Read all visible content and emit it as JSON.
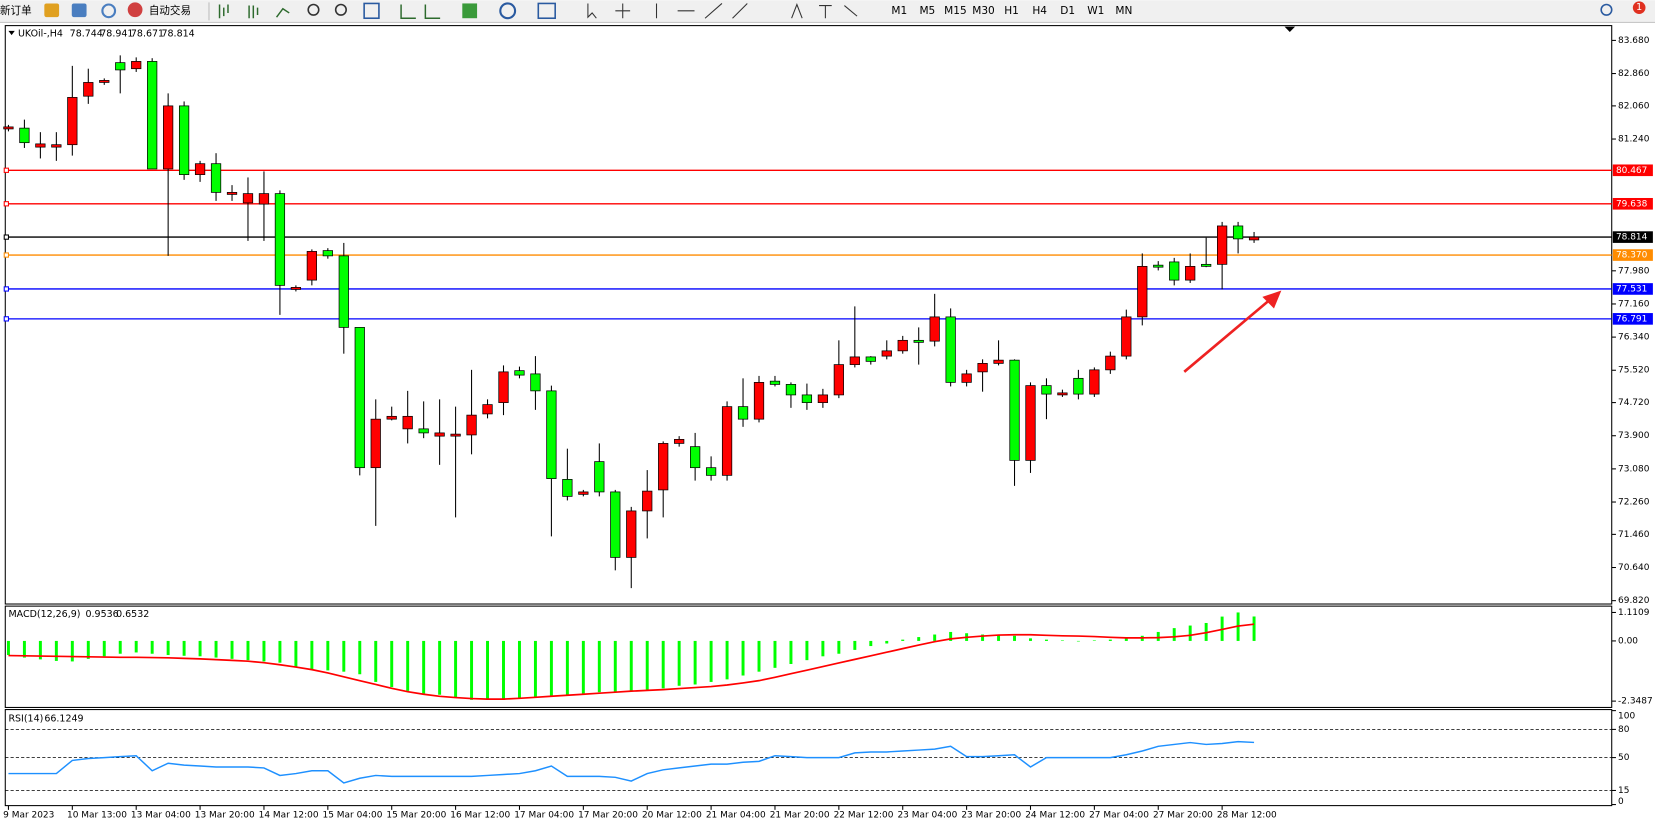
{
  "toolbar": {
    "new_order": "新订单",
    "auto_trading": "自动交易",
    "timeframes": [
      "M1",
      "M5",
      "M15",
      "M30",
      "H1",
      "H4",
      "D1",
      "W1",
      "MN"
    ],
    "notifications": 1
  },
  "chart": {
    "symbol": "UKOil-,H4",
    "up_color": "#ff0000",
    "down_color": "#00ff00",
    "price_line_color": "#000000",
    "ylim": [
      69.737,
      84.046
    ],
    "yticks": [
      {
        "value": 83.68,
        "label": "83.680"
      },
      {
        "value": 82.86,
        "label": "82.860"
      },
      {
        "value": 82.06,
        "label": "82.060"
      },
      {
        "value": 81.24,
        "label": "81.240"
      },
      {
        "value": 77.98,
        "label": "77.980"
      },
      {
        "value": 77.16,
        "label": "77.160"
      },
      {
        "value": 76.34,
        "label": "76.340"
      },
      {
        "value": 75.52,
        "label": "75.520"
      },
      {
        "value": 74.72,
        "label": "74.720"
      },
      {
        "value": 73.9,
        "label": "73.900"
      },
      {
        "value": 73.08,
        "label": "73.080"
      },
      {
        "value": 72.26,
        "label": "72.260"
      },
      {
        "value": 71.46,
        "label": "71.460"
      },
      {
        "value": 70.64,
        "label": "70.640"
      },
      {
        "value": 69.82,
        "label": "69.820"
      }
    ],
    "levels": [
      {
        "value": 80.467,
        "color": "#ff0000"
      },
      {
        "value": {
          "value": 79.638,
          "label": "79.638"
        },
        "color": "#ff0000"
      },
      {
        "value": {
          "value": 78.37,
          "label": "78.370"
        },
        "color": "#ff8c00"
      },
      {
        "value": 77.531,
        "color": "#0000ff"
      },
      {
        "value": 76.791,
        "color": "#0000ff"
      }
    ],
    "categories": [
      "9 Mar 2023",
      null,
      null,
      null,
      "10 Mar 13:00",
      null,
      null,
      null,
      "13 Mar 04:00",
      null,
      null,
      null,
      "13 Mar 20:00",
      null,
      null,
      null,
      "14 Mar 12:00",
      null,
      null,
      null,
      "15 Mar 04:00",
      null,
      null,
      null,
      "15 Mar 20:00",
      null,
      null,
      null,
      "16 Mar 12:00",
      null,
      null,
      null,
      "17 Mar 04:00",
      null,
      null,
      null,
      "17 Mar 20:00",
      null,
      null,
      null,
      "20 Mar 12:00",
      null,
      null,
      null,
      "21 Mar 04:00",
      null,
      null,
      null,
      "21 Mar 20:00",
      null,
      null,
      null,
      "22 Mar 12:00",
      null,
      null,
      null,
      "23 Mar 04:00",
      null,
      null,
      null,
      "23 Mar 20:00",
      null,
      null,
      null,
      "24 Mar 12:00",
      null,
      null,
      null,
      "27 Mar 04:00",
      null,
      null,
      null,
      "27 Mar 20:00",
      null,
      null,
      null,
      "28 Mar 12:00",
      null,
      null
    ],
    "candles": {
      "open": [
        81.49,
        81.51,
        81.04,
        81.04,
        81.1,
        82.3,
        82.64,
        83.13,
        82.98,
        83.16,
        80.5,
        82.06,
        80.36,
        80.63,
        79.87,
        79.66,
        79.63,
        79.89,
        77.52,
        77.75,
        78.48,
        78.35,
        76.58,
        73.11,
        74.31,
        74.07,
        74.07,
        73.89,
        73.89,
        73.92,
        74.44,
        74.72,
        75.51,
        75.43,
        75.01,
        72.82,
        72.45,
        73.26,
        72.51,
        70.89,
        72.04,
        72.56,
        73.71,
        73.63,
        73.11,
        72.92,
        74.62,
        74.31,
        75.25,
        75.17,
        74.91,
        74.72,
        74.91,
        75.66,
        75.85,
        75.87,
        76.0,
        76.26,
        76.24,
        76.84,
        75.22,
        75.48,
        75.69,
        75.77,
        73.29,
        75.14,
        74.91,
        75.32,
        74.93,
        75.53,
        75.87,
        76.84,
        78.12,
        78.2,
        77.75,
        78.14,
        78.14,
        79.09,
        78.744
      ],
      "high": [
        81.59,
        81.72,
        81.41,
        81.41,
        83.05,
        82.98,
        82.74,
        83.31,
        83.26,
        83.24,
        82.37,
        82.17,
        80.7,
        80.89,
        80.1,
        80.29,
        80.44,
        79.97,
        77.62,
        78.51,
        78.54,
        78.67,
        76.58,
        74.8,
        74.62,
        75.01,
        74.75,
        74.8,
        74.62,
        75.53,
        74.8,
        75.64,
        75.61,
        75.87,
        75.14,
        73.58,
        72.56,
        73.71,
        72.56,
        72.14,
        73.05,
        73.76,
        73.89,
        73.97,
        73.39,
        74.75,
        75.32,
        75.38,
        75.38,
        75.22,
        75.19,
        75.06,
        76.26,
        77.1,
        75.87,
        76.26,
        76.37,
        76.58,
        77.41,
        77.05,
        75.53,
        75.79,
        76.26,
        75.79,
        75.22,
        75.32,
        75.04,
        75.53,
        75.59,
        75.98,
        77.02,
        78.41,
        78.22,
        78.3,
        78.41,
        78.8,
        79.19,
        79.19,
        78.941
      ],
      "low": [
        81.43,
        81.02,
        80.76,
        80.7,
        80.83,
        82.11,
        82.58,
        82.37,
        82.9,
        80.5,
        78.35,
        80.23,
        80.18,
        79.71,
        79.71,
        78.72,
        78.72,
        76.89,
        77.47,
        77.62,
        78.28,
        75.93,
        72.92,
        71.67,
        74.28,
        73.71,
        73.84,
        73.18,
        71.88,
        73.44,
        74.33,
        74.41,
        75.32,
        74.54,
        71.41,
        72.3,
        72.4,
        72.4,
        70.57,
        70.13,
        71.36,
        71.88,
        73.63,
        72.79,
        72.79,
        72.79,
        74.12,
        74.23,
        75.12,
        74.59,
        74.54,
        74.59,
        74.83,
        75.59,
        75.66,
        75.79,
        75.93,
        75.66,
        76.11,
        75.12,
        75.12,
        74.99,
        75.64,
        72.66,
        72.98,
        74.31,
        74.86,
        74.8,
        74.86,
        75.43,
        75.79,
        76.63,
        77.99,
        77.62,
        77.68,
        78.07,
        77.52,
        78.41,
        78.671
      ],
      "close": [
        81.54,
        81.15,
        81.12,
        81.1,
        82.27,
        82.64,
        82.69,
        82.95,
        83.16,
        80.5,
        82.06,
        80.36,
        80.63,
        79.92,
        79.92,
        79.89,
        79.89,
        77.62,
        77.57,
        78.46,
        78.35,
        76.58,
        73.11,
        74.31,
        74.38,
        74.38,
        73.97,
        73.97,
        73.94,
        74.41,
        74.67,
        75.48,
        75.4,
        75.01,
        72.84,
        72.4,
        72.51,
        72.51,
        70.89,
        72.04,
        72.53,
        73.71,
        73.81,
        73.11,
        72.92,
        74.62,
        74.31,
        75.22,
        75.17,
        74.91,
        74.72,
        74.91,
        75.66,
        75.85,
        75.74,
        76.0,
        76.26,
        76.21,
        76.84,
        75.22,
        75.43,
        75.69,
        75.77,
        73.29,
        75.14,
        74.93,
        74.96,
        74.93,
        75.53,
        75.87,
        76.84,
        78.09,
        78.07,
        77.75,
        78.09,
        78.09,
        79.09,
        78.77,
        78.814
      ]
    }
  },
  "macd": {
    "label": "MACD(12,26,9)",
    "histogram_color": "#00ff00",
    "signal_color": "#ff0000",
    "ylim": [
      -2.596,
      1.358
    ],
    "yticks": [
      1.1109,
      {
        "value": 0,
        "label": "0.00"
      },
      -2.3487
    ],
    "histogram": [
      -0.55,
      -0.65,
      -0.72,
      -0.78,
      -0.8,
      -0.7,
      -0.6,
      -0.5,
      -0.45,
      -0.5,
      -0.55,
      -0.58,
      -0.6,
      -0.65,
      -0.7,
      -0.75,
      -0.8,
      -0.85,
      -1.0,
      -1.1,
      -1.15,
      -1.2,
      -1.3,
      -1.6,
      -1.8,
      -1.95,
      -2.05,
      -2.1,
      -2.2,
      -2.3,
      -2.3,
      -2.3,
      -2.25,
      -2.2,
      -2.15,
      -2.1,
      -2.05,
      -2.0,
      -2.0,
      -1.95,
      -1.9,
      -1.85,
      -1.75,
      -1.7,
      -1.6,
      -1.5,
      -1.35,
      -1.2,
      -1.05,
      -0.9,
      -0.75,
      -0.6,
      -0.5,
      -0.35,
      -0.2,
      -0.1,
      0.05,
      0.15,
      0.25,
      0.35,
      0.3,
      0.25,
      0.22,
      0.2,
      0.1,
      0.05,
      0.02,
      0.0,
      0.02,
      0.05,
      0.1,
      0.2,
      0.35,
      0.5,
      0.6,
      0.7,
      0.95,
      1.1109,
      0.9536
    ],
    "signal": [
      -0.57,
      -0.58,
      -0.59,
      -0.6,
      -0.61,
      -0.62,
      -0.63,
      -0.64,
      -0.64,
      -0.65,
      -0.66,
      -0.68,
      -0.7,
      -0.73,
      -0.76,
      -0.79,
      -0.85,
      -0.93,
      -1.02,
      -1.12,
      -1.25,
      -1.4,
      -1.55,
      -1.7,
      -1.85,
      -1.98,
      -2.08,
      -2.16,
      -2.21,
      -2.25,
      -2.27,
      -2.27,
      -2.24,
      -2.2,
      -2.16,
      -2.12,
      -2.08,
      -2.04,
      -2.0,
      -1.96,
      -1.93,
      -1.9,
      -1.86,
      -1.82,
      -1.78,
      -1.72,
      -1.64,
      -1.55,
      -1.42,
      -1.28,
      -1.14,
      -1.0,
      -0.86,
      -0.72,
      -0.58,
      -0.44,
      -0.3,
      -0.16,
      -0.03,
      0.08,
      0.14,
      0.19,
      0.23,
      0.24,
      0.24,
      0.22,
      0.2,
      0.19,
      0.17,
      0.14,
      0.12,
      0.12,
      0.13,
      0.16,
      0.22,
      0.32,
      0.45,
      0.58,
      0.6532
    ]
  },
  "rsi": {
    "label": "RSI(14)",
    "color": "#1e90ff",
    "ylim": [
      0,
      100
    ],
    "yticks": [
      100,
      80,
      50,
      15,
      0
    ],
    "values": [
      33,
      33,
      33,
      33,
      47,
      49,
      50,
      51,
      52,
      36,
      44,
      42,
      41,
      40,
      40,
      40,
      39,
      31,
      33,
      36,
      36,
      23,
      28,
      31,
      30,
      30,
      30,
      30,
      30,
      30,
      31,
      32,
      33,
      36,
      41,
      30,
      30,
      30,
      29,
      25,
      33,
      37,
      39,
      41,
      43,
      43,
      45,
      46,
      52,
      51,
      50,
      50,
      50,
      55,
      56,
      56,
      57,
      58,
      59,
      62,
      51,
      51,
      52,
      53,
      40,
      50,
      50,
      50,
      50,
      50,
      53,
      57,
      62,
      64,
      66,
      64,
      65,
      67,
      66.1249
    ]
  }
}
